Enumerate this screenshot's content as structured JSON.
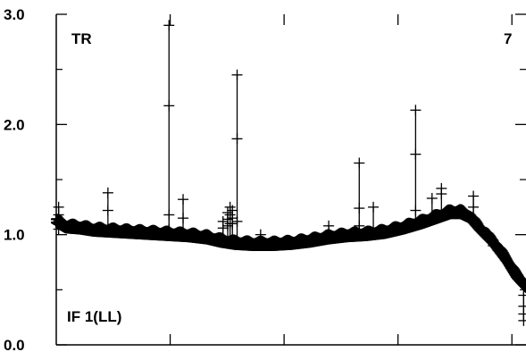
{
  "chart_data": {
    "type": "scatter",
    "ylim": [
      0.0,
      3.0
    ],
    "yticks": [
      {
        "value": 3.0,
        "label": "3.0"
      },
      {
        "value": 2.0,
        "label": "2.0"
      },
      {
        "value": 1.0,
        "label": "1.0"
      },
      {
        "value": 0.0,
        "label": "0.0"
      }
    ],
    "xtick_count": 4,
    "marker": "plus",
    "annotations": {
      "top_left": "TR",
      "top_right": "7",
      "bottom_left": "IF 1(LL)"
    },
    "baseline_profile": [
      [
        0.0,
        1.14
      ],
      [
        0.02,
        1.09
      ],
      [
        0.05,
        1.08
      ],
      [
        0.08,
        1.06
      ],
      [
        0.12,
        1.05
      ],
      [
        0.16,
        1.04
      ],
      [
        0.2,
        1.03
      ],
      [
        0.24,
        1.02
      ],
      [
        0.28,
        1.01
      ],
      [
        0.32,
        0.99
      ],
      [
        0.35,
        0.96
      ],
      [
        0.38,
        0.94
      ],
      [
        0.42,
        0.93
      ],
      [
        0.46,
        0.93
      ],
      [
        0.5,
        0.94
      ],
      [
        0.54,
        0.96
      ],
      [
        0.58,
        0.99
      ],
      [
        0.62,
        1.01
      ],
      [
        0.66,
        1.02
      ],
      [
        0.7,
        1.04
      ],
      [
        0.74,
        1.08
      ],
      [
        0.78,
        1.13
      ],
      [
        0.82,
        1.19
      ],
      [
        0.84,
        1.22
      ],
      [
        0.86,
        1.22
      ],
      [
        0.88,
        1.18
      ],
      [
        0.9,
        1.08
      ],
      [
        0.93,
        0.95
      ],
      [
        0.96,
        0.78
      ],
      [
        0.98,
        0.64
      ],
      [
        1.0,
        0.55
      ]
    ],
    "outliers": [
      {
        "x": 0.005,
        "values": [
          1.25,
          1.18,
          1.12,
          1.05
        ]
      },
      {
        "x": 0.11,
        "values": [
          1.38,
          1.22
        ]
      },
      {
        "x": 0.24,
        "values": [
          2.9,
          2.17,
          1.18,
          1.05
        ]
      },
      {
        "x": 0.27,
        "values": [
          1.32,
          1.15
        ]
      },
      {
        "x": 0.355,
        "values": [
          1.12,
          1.06
        ]
      },
      {
        "x": 0.365,
        "values": [
          1.2,
          1.14,
          1.08
        ]
      },
      {
        "x": 0.37,
        "values": [
          1.25,
          1.18,
          1.1
        ]
      },
      {
        "x": 0.375,
        "values": [
          1.22,
          1.15,
          1.1
        ]
      },
      {
        "x": 0.385,
        "values": [
          2.45,
          1.87,
          1.12
        ]
      },
      {
        "x": 0.435,
        "values": [
          1.0
        ]
      },
      {
        "x": 0.58,
        "values": [
          1.08
        ]
      },
      {
        "x": 0.645,
        "values": [
          1.65,
          1.24,
          1.08
        ]
      },
      {
        "x": 0.675,
        "values": [
          1.25
        ]
      },
      {
        "x": 0.765,
        "values": [
          2.13,
          1.73,
          1.22
        ]
      },
      {
        "x": 0.8,
        "values": [
          1.33
        ]
      },
      {
        "x": 0.82,
        "values": [
          1.42,
          1.37
        ]
      },
      {
        "x": 0.888,
        "values": [
          1.35,
          1.25
        ]
      },
      {
        "x": 0.93,
        "values": [
          0.95,
          0.9
        ]
      },
      {
        "x": 0.995,
        "values": [
          0.45,
          0.35,
          0.28,
          0.22
        ]
      }
    ]
  }
}
